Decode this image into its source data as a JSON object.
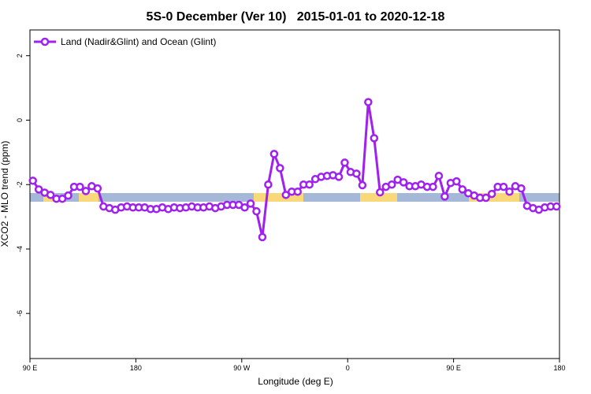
{
  "chart_data": {
    "type": "line",
    "title": "5S-0 December (Ver 10)   2015-01-01 to 2020-12-18",
    "xlabel": "Longitude (deg E)",
    "ylabel": "XCO2 - MLO trend (ppm)",
    "legend": "topleft",
    "xlim": [
      90,
      540
    ],
    "xticks": [
      {
        "value": 90,
        "label": "90 E"
      },
      {
        "value": 180,
        "label": "180"
      },
      {
        "value": 270,
        "label": "90 W"
      },
      {
        "value": 360,
        "label": "0"
      },
      {
        "value": 450,
        "label": "90 E"
      },
      {
        "value": 540,
        "label": "180"
      }
    ],
    "ylim": [
      -7.4,
      2.8
    ],
    "yticks": [
      2,
      0,
      -2,
      -4,
      -6
    ],
    "x": [
      92.5,
      97.5,
      102.5,
      107.5,
      112.5,
      117.5,
      122.5,
      127.5,
      132.5,
      137.5,
      142.5,
      147.5,
      152.5,
      157.5,
      162.5,
      167.5,
      172.5,
      177.5,
      182.5,
      187.5,
      192.5,
      197.5,
      202.5,
      207.5,
      212.5,
      217.5,
      222.5,
      227.5,
      232.5,
      237.5,
      242.5,
      247.5,
      252.5,
      257.5,
      262.5,
      267.5,
      272.5,
      277.5,
      282.5,
      287.5,
      292.5,
      297.5,
      302.5,
      307.5,
      312.5,
      317.5,
      322.5,
      327.5,
      332.5,
      337.5,
      342.5,
      347.5,
      352.5,
      357.5,
      362.5,
      367.5,
      372.5,
      377.5,
      382.5,
      387.5,
      392.5,
      397.5,
      402.5,
      407.5,
      412.5,
      417.5,
      422.5,
      427.5,
      432.5,
      437.5,
      442.5,
      447.5,
      452.5,
      457.5,
      462.5,
      467.5,
      472.5,
      477.5,
      482.5,
      487.5,
      492.5,
      497.5,
      502.5,
      507.5,
      512.5,
      517.5,
      522.5,
      527.5,
      532.5,
      537.5
    ],
    "series": [
      {
        "name": "Land (Nadir&Glint) and Ocean (Glint)",
        "color": "#a020f0",
        "values": [
          -1.88,
          -2.15,
          -2.25,
          -2.32,
          -2.44,
          -2.44,
          -2.34,
          -2.07,
          -2.07,
          -2.2,
          -2.05,
          -2.12,
          -2.68,
          -2.73,
          -2.78,
          -2.71,
          -2.68,
          -2.71,
          -2.71,
          -2.71,
          -2.76,
          -2.76,
          -2.71,
          -2.76,
          -2.71,
          -2.73,
          -2.71,
          -2.68,
          -2.71,
          -2.71,
          -2.68,
          -2.73,
          -2.68,
          -2.63,
          -2.63,
          -2.63,
          -2.71,
          -2.59,
          -2.83,
          -3.63,
          -2.0,
          -1.05,
          -1.49,
          -2.32,
          -2.22,
          -2.22,
          -2.0,
          -2.0,
          -1.83,
          -1.76,
          -1.73,
          -1.71,
          -1.76,
          -1.32,
          -1.61,
          -1.66,
          -2.02,
          0.56,
          -0.56,
          -2.24,
          -2.07,
          -2.0,
          -1.85,
          -1.93,
          -2.05,
          -2.05,
          -2.0,
          -2.07,
          -2.07,
          -1.73,
          -2.37,
          -1.95,
          -1.9,
          -2.15,
          -2.27,
          -2.34,
          -2.41,
          -2.41,
          -2.29,
          -2.07,
          -2.07,
          -2.22,
          -2.05,
          -2.12,
          -2.66,
          -2.73,
          -2.78,
          -2.71,
          -2.68,
          -2.68
        ]
      }
    ]
  }
}
